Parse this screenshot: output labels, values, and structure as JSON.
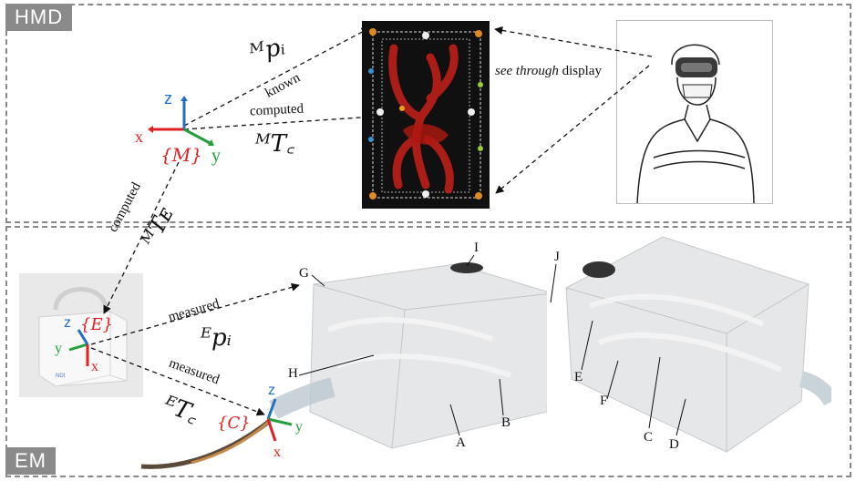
{
  "sections": {
    "hmd_label": "HMD",
    "em_label": "EM"
  },
  "hmd": {
    "see_through": "see through display",
    "see_through_em": "see through",
    "see_through_rest": " display",
    "known": "known",
    "computed_1": "computed",
    "m_p_i": "ᴹpᵢ",
    "m_t_c": "ᴹT꜀",
    "frame_m": "{M}",
    "axis_x": "x",
    "axis_y": "y",
    "axis_z": "z"
  },
  "em": {
    "computed_2": "computed",
    "m_t_e": "ᴹTᴇ",
    "measured_1": "measured",
    "measured_2": "measured",
    "e_p_i": "ᴱpᵢ",
    "e_t_c": "ᴱT꜀",
    "frame_e": "{E}",
    "frame_c": "{C}",
    "axis_x": "x",
    "axis_y": "y",
    "axis_z": "z"
  },
  "phantom_labels": {
    "A": "A",
    "B": "B",
    "C": "C",
    "D": "D",
    "E": "E",
    "F": "F",
    "G": "G",
    "H": "H",
    "I": "I",
    "J": "J"
  },
  "colors": {
    "axis_x": "#e02020",
    "axis_y": "#23a03c",
    "axis_z": "#1f6fc2",
    "frame_label": "#e02020"
  }
}
